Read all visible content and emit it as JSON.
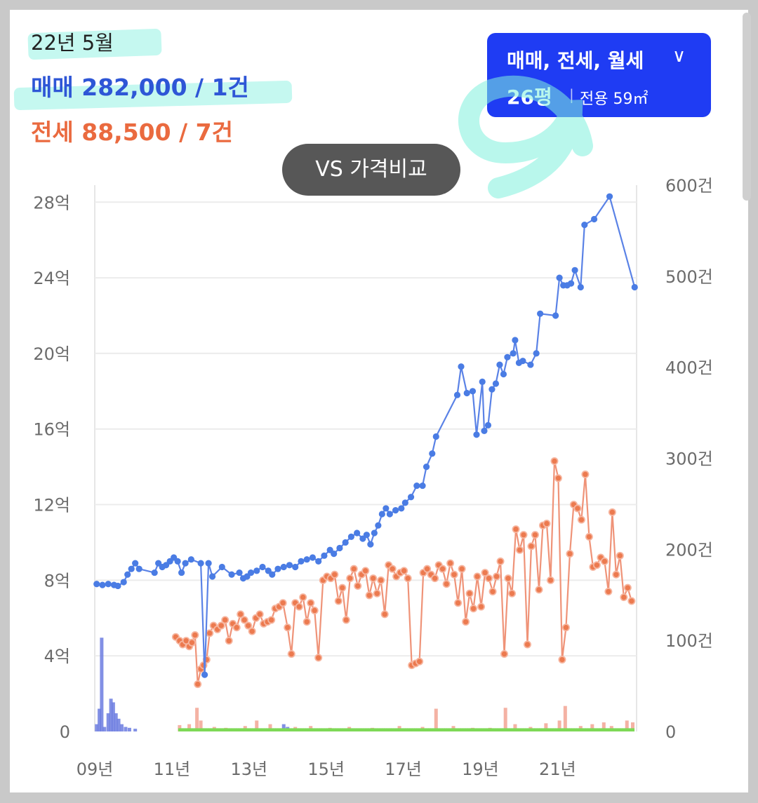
{
  "header": {
    "date": "22년 5월",
    "sale_label": "매매",
    "sale_value": "282,000 / 1건",
    "jeonse_label": "전세",
    "jeonse_value": "88,500 / 7건"
  },
  "filter": {
    "types": "매매, 전세, 월세",
    "chevron": "∨",
    "size": "26평",
    "separator": "|",
    "area": "전용 59㎡"
  },
  "compare_button": "VS 가격비교",
  "colors": {
    "sale": "#5a82e6",
    "sale_dot": "#4a7ce4",
    "jeonse": "#ef9378",
    "jeonse_dot": "#ec7a4f",
    "volume_sale": "#6c7ce0",
    "volume_jeonse": "#f2a594",
    "volume_monthly": "#7ed957",
    "filter_bg": "#1f3cf3"
  },
  "chart_data": {
    "type": "line",
    "x_ticks": [
      "09년",
      "11년",
      "13년",
      "15년",
      "17년",
      "19년",
      "21년"
    ],
    "x_tick_years": [
      2009,
      2011,
      2013,
      2015,
      2017,
      2019,
      2021
    ],
    "xlim": [
      2009,
      2023.05
    ],
    "y_left_ticks": [
      "0",
      "4억",
      "8억",
      "12억",
      "16억",
      "20억",
      "24억",
      "28억"
    ],
    "y_left_values": [
      0,
      4,
      8,
      12,
      16,
      20,
      24,
      28
    ],
    "y_left_lim": [
      0,
      28.9
    ],
    "y_left_unit": "억",
    "y_right_ticks": [
      "0",
      "100건",
      "200건",
      "300건",
      "400건",
      "500건",
      "600건"
    ],
    "y_right_values": [
      0,
      100,
      200,
      300,
      400,
      500,
      600
    ],
    "y_right_lim": [
      0,
      600
    ],
    "grid": true,
    "series": [
      {
        "name": "매매",
        "axis": "left",
        "points": [
          [
            2009.05,
            7.8
          ],
          [
            2009.2,
            7.75
          ],
          [
            2009.35,
            7.8
          ],
          [
            2009.5,
            7.75
          ],
          [
            2009.6,
            7.7
          ],
          [
            2009.75,
            7.9
          ],
          [
            2009.85,
            8.3
          ],
          [
            2009.95,
            8.6
          ],
          [
            2010.05,
            8.9
          ],
          [
            2010.15,
            8.6
          ],
          [
            2010.55,
            8.4
          ],
          [
            2010.65,
            8.9
          ],
          [
            2010.75,
            8.7
          ],
          [
            2010.85,
            8.8
          ],
          [
            2010.95,
            9.0
          ],
          [
            2011.05,
            9.2
          ],
          [
            2011.15,
            9.0
          ],
          [
            2011.25,
            8.4
          ],
          [
            2011.35,
            8.9
          ],
          [
            2011.5,
            9.1
          ],
          [
            2011.75,
            8.9
          ],
          [
            2011.85,
            3.0
          ],
          [
            2011.95,
            8.9
          ],
          [
            2012.05,
            8.2
          ],
          [
            2012.3,
            8.7
          ],
          [
            2012.55,
            8.3
          ],
          [
            2012.75,
            8.4
          ],
          [
            2012.85,
            8.1
          ],
          [
            2012.95,
            8.2
          ],
          [
            2013.05,
            8.4
          ],
          [
            2013.2,
            8.5
          ],
          [
            2013.35,
            8.7
          ],
          [
            2013.5,
            8.5
          ],
          [
            2013.6,
            8.3
          ],
          [
            2013.75,
            8.6
          ],
          [
            2013.9,
            8.7
          ],
          [
            2014.05,
            8.8
          ],
          [
            2014.2,
            8.7
          ],
          [
            2014.35,
            9.0
          ],
          [
            2014.5,
            9.1
          ],
          [
            2014.65,
            9.2
          ],
          [
            2014.8,
            9.0
          ],
          [
            2014.95,
            9.3
          ],
          [
            2015.1,
            9.6
          ],
          [
            2015.2,
            9.4
          ],
          [
            2015.35,
            9.7
          ],
          [
            2015.5,
            10.0
          ],
          [
            2015.65,
            10.3
          ],
          [
            2015.8,
            10.5
          ],
          [
            2015.95,
            10.2
          ],
          [
            2016.05,
            10.4
          ],
          [
            2016.15,
            9.9
          ],
          [
            2016.25,
            10.5
          ],
          [
            2016.35,
            10.9
          ],
          [
            2016.45,
            11.5
          ],
          [
            2016.55,
            11.8
          ],
          [
            2016.65,
            11.5
          ],
          [
            2016.8,
            11.7
          ],
          [
            2016.95,
            11.8
          ],
          [
            2017.05,
            12.1
          ],
          [
            2017.2,
            12.4
          ],
          [
            2017.35,
            13.0
          ],
          [
            2017.5,
            13.0
          ],
          [
            2017.6,
            14.0
          ],
          [
            2017.75,
            14.7
          ],
          [
            2017.85,
            15.6
          ],
          [
            2018.4,
            17.8
          ],
          [
            2018.5,
            19.3
          ],
          [
            2018.65,
            17.9
          ],
          [
            2018.8,
            18.0
          ],
          [
            2018.9,
            15.7
          ],
          [
            2019.05,
            18.5
          ],
          [
            2019.1,
            15.9
          ],
          [
            2019.2,
            16.2
          ],
          [
            2019.3,
            18.1
          ],
          [
            2019.4,
            18.4
          ],
          [
            2019.5,
            19.4
          ],
          [
            2019.6,
            18.9
          ],
          [
            2019.7,
            19.8
          ],
          [
            2019.85,
            20.0
          ],
          [
            2019.9,
            20.7
          ],
          [
            2020.0,
            19.5
          ],
          [
            2020.1,
            19.6
          ],
          [
            2020.3,
            19.4
          ],
          [
            2020.45,
            20.0
          ],
          [
            2020.55,
            22.1
          ],
          [
            2020.95,
            22.0
          ],
          [
            2021.05,
            24.0
          ],
          [
            2021.15,
            23.6
          ],
          [
            2021.25,
            23.6
          ],
          [
            2021.35,
            23.7
          ],
          [
            2021.45,
            24.4
          ],
          [
            2021.6,
            23.5
          ],
          [
            2021.7,
            26.8
          ],
          [
            2021.95,
            27.1
          ],
          [
            2022.35,
            28.3
          ],
          [
            2023.0,
            23.5
          ]
        ]
      },
      {
        "name": "전세",
        "axis": "left",
        "points": [
          [
            2011.1,
            5.0
          ],
          [
            2011.2,
            4.8
          ],
          [
            2011.28,
            4.6
          ],
          [
            2011.37,
            4.8
          ],
          [
            2011.45,
            4.5
          ],
          [
            2011.52,
            4.7
          ],
          [
            2011.6,
            5.1
          ],
          [
            2011.67,
            2.5
          ],
          [
            2011.75,
            3.3
          ],
          [
            2011.82,
            3.5
          ],
          [
            2011.9,
            3.8
          ],
          [
            2011.98,
            5.2
          ],
          [
            2012.08,
            5.6
          ],
          [
            2012.18,
            5.4
          ],
          [
            2012.28,
            5.6
          ],
          [
            2012.38,
            5.9
          ],
          [
            2012.48,
            4.8
          ],
          [
            2012.58,
            5.7
          ],
          [
            2012.68,
            5.5
          ],
          [
            2012.78,
            6.2
          ],
          [
            2012.88,
            5.9
          ],
          [
            2012.98,
            5.6
          ],
          [
            2013.08,
            5.3
          ],
          [
            2013.18,
            6.0
          ],
          [
            2013.28,
            6.2
          ],
          [
            2013.38,
            5.7
          ],
          [
            2013.48,
            5.8
          ],
          [
            2013.58,
            5.9
          ],
          [
            2013.68,
            6.5
          ],
          [
            2013.78,
            6.6
          ],
          [
            2013.88,
            6.8
          ],
          [
            2014.0,
            5.5
          ],
          [
            2014.1,
            4.1
          ],
          [
            2014.2,
            6.8
          ],
          [
            2014.3,
            6.6
          ],
          [
            2014.4,
            7.1
          ],
          [
            2014.5,
            5.8
          ],
          [
            2014.6,
            6.8
          ],
          [
            2014.7,
            6.4
          ],
          [
            2014.8,
            3.9
          ],
          [
            2014.92,
            8.0
          ],
          [
            2015.02,
            8.2
          ],
          [
            2015.12,
            8.1
          ],
          [
            2015.22,
            8.3
          ],
          [
            2015.32,
            6.9
          ],
          [
            2015.42,
            7.6
          ],
          [
            2015.52,
            5.9
          ],
          [
            2015.62,
            8.1
          ],
          [
            2015.72,
            8.6
          ],
          [
            2015.82,
            7.7
          ],
          [
            2015.92,
            8.3
          ],
          [
            2016.02,
            8.5
          ],
          [
            2016.12,
            7.2
          ],
          [
            2016.22,
            8.1
          ],
          [
            2016.32,
            7.3
          ],
          [
            2016.42,
            8.0
          ],
          [
            2016.52,
            6.2
          ],
          [
            2016.62,
            8.8
          ],
          [
            2016.72,
            8.6
          ],
          [
            2016.82,
            8.2
          ],
          [
            2016.92,
            8.4
          ],
          [
            2017.02,
            8.5
          ],
          [
            2017.12,
            8.1
          ],
          [
            2017.22,
            3.5
          ],
          [
            2017.32,
            3.6
          ],
          [
            2017.42,
            3.7
          ],
          [
            2017.52,
            8.4
          ],
          [
            2017.62,
            8.6
          ],
          [
            2017.72,
            8.3
          ],
          [
            2017.82,
            8.1
          ],
          [
            2017.92,
            8.8
          ],
          [
            2018.02,
            8.6
          ],
          [
            2018.12,
            7.8
          ],
          [
            2018.22,
            8.9
          ],
          [
            2018.32,
            8.3
          ],
          [
            2018.42,
            6.8
          ],
          [
            2018.52,
            8.6
          ],
          [
            2018.62,
            5.8
          ],
          [
            2018.72,
            7.3
          ],
          [
            2018.82,
            6.5
          ],
          [
            2018.92,
            8.2
          ],
          [
            2019.02,
            6.6
          ],
          [
            2019.12,
            8.4
          ],
          [
            2019.22,
            8.1
          ],
          [
            2019.32,
            7.4
          ],
          [
            2019.42,
            8.2
          ],
          [
            2019.52,
            9.0
          ],
          [
            2019.62,
            4.1
          ],
          [
            2019.72,
            8.1
          ],
          [
            2019.82,
            7.3
          ],
          [
            2019.92,
            10.7
          ],
          [
            2020.02,
            9.6
          ],
          [
            2020.12,
            10.4
          ],
          [
            2020.22,
            4.6
          ],
          [
            2020.32,
            9.8
          ],
          [
            2020.42,
            10.4
          ],
          [
            2020.52,
            7.5
          ],
          [
            2020.62,
            10.9
          ],
          [
            2020.72,
            11.0
          ],
          [
            2020.82,
            8.0
          ],
          [
            2020.92,
            14.3
          ],
          [
            2021.02,
            13.4
          ],
          [
            2021.12,
            3.8
          ],
          [
            2021.22,
            5.5
          ],
          [
            2021.32,
            9.4
          ],
          [
            2021.42,
            12.0
          ],
          [
            2021.52,
            11.8
          ],
          [
            2021.62,
            11.2
          ],
          [
            2021.72,
            13.6
          ],
          [
            2021.82,
            10.3
          ],
          [
            2021.92,
            8.7
          ],
          [
            2022.02,
            8.8
          ],
          [
            2022.12,
            9.2
          ],
          [
            2022.22,
            9.0
          ],
          [
            2022.32,
            7.4
          ],
          [
            2022.42,
            11.6
          ],
          [
            2022.52,
            8.3
          ],
          [
            2022.62,
            9.3
          ],
          [
            2022.72,
            7.1
          ],
          [
            2022.82,
            7.6
          ],
          [
            2022.92,
            6.9
          ]
        ]
      },
      {
        "name": "매매 거래량",
        "axis": "right",
        "bars": [
          [
            2009.05,
            8
          ],
          [
            2009.12,
            25
          ],
          [
            2009.18,
            103
          ],
          [
            2009.25,
            5
          ],
          [
            2009.35,
            20
          ],
          [
            2009.42,
            36
          ],
          [
            2009.48,
            32
          ],
          [
            2009.55,
            20
          ],
          [
            2009.62,
            14
          ],
          [
            2009.7,
            8
          ],
          [
            2009.8,
            5
          ],
          [
            2009.9,
            4
          ],
          [
            2010.05,
            3
          ],
          [
            2011.6,
            2
          ],
          [
            2013.9,
            8
          ],
          [
            2014.0,
            5
          ],
          [
            2016.7,
            3
          ],
          [
            2017.4,
            3
          ],
          [
            2019.0,
            3
          ]
        ]
      },
      {
        "name": "전세 거래량",
        "axis": "right",
        "bars": [
          [
            2011.2,
            7
          ],
          [
            2011.45,
            8
          ],
          [
            2011.65,
            26
          ],
          [
            2011.75,
            12
          ],
          [
            2012.1,
            5
          ],
          [
            2012.4,
            4
          ],
          [
            2012.9,
            6
          ],
          [
            2013.2,
            12
          ],
          [
            2013.55,
            8
          ],
          [
            2014.2,
            5
          ],
          [
            2014.6,
            6
          ],
          [
            2015.1,
            4
          ],
          [
            2015.6,
            5
          ],
          [
            2016.2,
            4
          ],
          [
            2016.9,
            6
          ],
          [
            2017.5,
            5
          ],
          [
            2017.85,
            25
          ],
          [
            2018.3,
            6
          ],
          [
            2018.8,
            4
          ],
          [
            2019.25,
            4
          ],
          [
            2019.65,
            26
          ],
          [
            2019.9,
            8
          ],
          [
            2020.3,
            5
          ],
          [
            2020.7,
            9
          ],
          [
            2021.05,
            12
          ],
          [
            2021.2,
            28
          ],
          [
            2021.6,
            6
          ],
          [
            2021.9,
            8
          ],
          [
            2022.2,
            10
          ],
          [
            2022.4,
            6
          ],
          [
            2022.8,
            12
          ],
          [
            2022.95,
            10
          ]
        ]
      },
      {
        "name": "월세 거래량",
        "axis": "right",
        "baseline_range": [
          2011.2,
          2023.0
        ],
        "level": 2
      }
    ]
  }
}
